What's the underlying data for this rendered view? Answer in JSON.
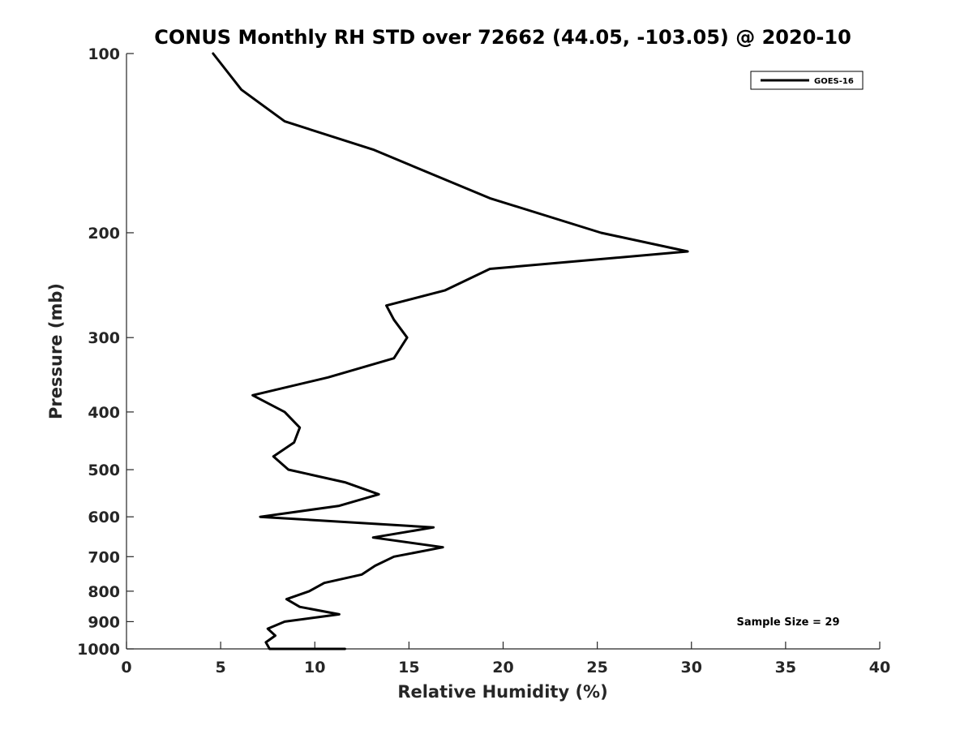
{
  "chart_data": {
    "type": "line",
    "title": "CONUS Monthly RH STD over 72662 (44.05, -103.05) @ 2020-10",
    "xlabel": "Relative Humidity (%)",
    "ylabel": "Pressure (mb)",
    "xlim": [
      0,
      40
    ],
    "ylim": [
      1000,
      100
    ],
    "yscale": "log",
    "y_reversed": true,
    "grid": false,
    "legend_position": "top-right",
    "xticks": [
      0,
      5,
      10,
      15,
      20,
      25,
      30,
      35,
      40
    ],
    "xtick_labels": [
      "0",
      "5",
      "10",
      "15",
      "20",
      "25",
      "30",
      "35",
      "40"
    ],
    "yticks": [
      100,
      200,
      300,
      400,
      500,
      600,
      700,
      800,
      900,
      1000
    ],
    "ytick_labels": [
      "100",
      "200",
      "300",
      "400",
      "500",
      "600",
      "700",
      "800",
      "900",
      "1000"
    ],
    "series": [
      {
        "name": "GOES-16",
        "color": "#000000",
        "x": [
          4.6,
          6.1,
          8.4,
          13.1,
          19.3,
          25.2,
          29.8,
          19.3,
          16.9,
          13.8,
          14.2,
          14.9,
          14.2,
          10.7,
          6.7,
          8.4,
          9.2,
          8.9,
          7.8,
          8.6,
          11.6,
          13.4,
          11.3,
          7.1,
          16.3,
          13.1,
          16.8,
          14.2,
          13.2,
          12.5,
          10.5,
          9.7,
          8.5,
          9.2,
          11.3,
          8.4,
          7.5,
          7.9,
          7.4,
          7.6,
          11.6
        ],
        "y": [
          100,
          115,
          130,
          145,
          175,
          200,
          215,
          230,
          250,
          265,
          280,
          300,
          325,
          350,
          375,
          400,
          425,
          450,
          475,
          500,
          525,
          550,
          575,
          600,
          625,
          650,
          675,
          700,
          725,
          750,
          775,
          800,
          825,
          850,
          875,
          900,
          925,
          950,
          975,
          1000,
          1000
        ]
      }
    ],
    "annotations": [
      "Sample Size = 29"
    ]
  }
}
